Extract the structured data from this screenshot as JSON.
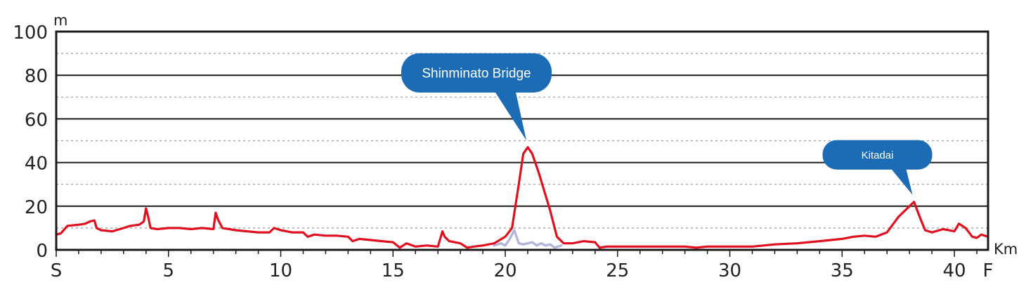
{
  "chart_data": {
    "type": "line",
    "y_unit": "m",
    "x_unit": "Km",
    "xlim": [
      0,
      41.5
    ],
    "ylim": [
      0,
      100
    ],
    "y_ticks": [
      {
        "value": 0,
        "label": "0"
      },
      {
        "value": 20,
        "label": "20"
      },
      {
        "value": 40,
        "label": "40"
      },
      {
        "value": 60,
        "label": "60"
      },
      {
        "value": 80,
        "label": "80"
      },
      {
        "value": 100,
        "label": "100"
      }
    ],
    "y_minor_gridlines": [
      10,
      30,
      50,
      70,
      90
    ],
    "x_ticks": [
      {
        "value": 0,
        "label": "S"
      },
      {
        "value": 5,
        "label": "5"
      },
      {
        "value": 10,
        "label": "10"
      },
      {
        "value": 15,
        "label": "15"
      },
      {
        "value": 20,
        "label": "20"
      },
      {
        "value": 25,
        "label": "25"
      },
      {
        "value": 30,
        "label": "30"
      },
      {
        "value": 35,
        "label": "35"
      },
      {
        "value": 40,
        "label": "40"
      },
      {
        "value": 41.5,
        "label": "F"
      }
    ],
    "grid": true,
    "series": [
      {
        "color": "#e0101f",
        "points": [
          [
            0,
            7
          ],
          [
            0.2,
            7.5
          ],
          [
            0.5,
            11
          ],
          [
            1,
            11.5
          ],
          [
            1.3,
            12
          ],
          [
            1.5,
            13
          ],
          [
            1.7,
            13.5
          ],
          [
            1.8,
            10
          ],
          [
            2,
            9
          ],
          [
            2.5,
            8.5
          ],
          [
            3,
            10
          ],
          [
            3.3,
            11
          ],
          [
            3.7,
            11.5
          ],
          [
            3.9,
            13
          ],
          [
            4,
            19
          ],
          [
            4.1,
            15
          ],
          [
            4.2,
            10
          ],
          [
            4.5,
            9.5
          ],
          [
            5,
            10
          ],
          [
            5.5,
            10
          ],
          [
            6,
            9.5
          ],
          [
            6.5,
            10
          ],
          [
            7,
            9.5
          ],
          [
            7.1,
            17
          ],
          [
            7.2,
            14
          ],
          [
            7.4,
            10
          ],
          [
            8,
            9
          ],
          [
            8.5,
            8.5
          ],
          [
            9,
            8
          ],
          [
            9.5,
            8
          ],
          [
            9.7,
            10
          ],
          [
            10,
            9
          ],
          [
            10.5,
            8
          ],
          [
            11,
            8
          ],
          [
            11.2,
            6
          ],
          [
            11.5,
            7
          ],
          [
            12,
            6.5
          ],
          [
            12.5,
            6.5
          ],
          [
            13,
            6
          ],
          [
            13.2,
            4
          ],
          [
            13.5,
            5
          ],
          [
            14,
            4.5
          ],
          [
            14.5,
            4
          ],
          [
            15,
            3.5
          ],
          [
            15.3,
            1
          ],
          [
            15.6,
            3
          ],
          [
            16,
            1.5
          ],
          [
            16.5,
            2
          ],
          [
            17,
            1.5
          ],
          [
            17.2,
            8.5
          ],
          [
            17.3,
            6
          ],
          [
            17.5,
            4
          ],
          [
            18,
            3
          ],
          [
            18.3,
            1
          ],
          [
            18.6,
            1.5
          ],
          [
            19,
            2
          ],
          [
            19.5,
            3
          ],
          [
            20,
            6
          ],
          [
            20.3,
            10
          ],
          [
            20.6,
            30
          ],
          [
            20.8,
            44
          ],
          [
            21,
            47
          ],
          [
            21.2,
            44
          ],
          [
            21.5,
            35
          ],
          [
            22,
            18
          ],
          [
            22.3,
            6
          ],
          [
            22.6,
            3
          ],
          [
            23,
            3
          ],
          [
            23.5,
            4
          ],
          [
            24,
            3.5
          ],
          [
            24.2,
            1
          ],
          [
            24.5,
            1.5
          ],
          [
            25,
            1.5
          ],
          [
            26,
            1.5
          ],
          [
            27,
            1.5
          ],
          [
            28,
            1.5
          ],
          [
            28.5,
            1
          ],
          [
            29,
            1.5
          ],
          [
            30,
            1.5
          ],
          [
            31,
            1.5
          ],
          [
            31.5,
            2
          ],
          [
            32,
            2.5
          ],
          [
            33,
            3
          ],
          [
            34,
            4
          ],
          [
            35,
            5
          ],
          [
            35.5,
            6
          ],
          [
            36,
            6.5
          ],
          [
            36.5,
            6
          ],
          [
            37,
            8
          ],
          [
            37.5,
            15
          ],
          [
            38,
            20
          ],
          [
            38.2,
            22
          ],
          [
            38.5,
            14
          ],
          [
            38.7,
            9
          ],
          [
            39,
            8
          ],
          [
            39.5,
            9.5
          ],
          [
            40,
            8.5
          ],
          [
            40.2,
            12
          ],
          [
            40.5,
            10
          ],
          [
            40.8,
            6
          ],
          [
            41,
            5.5
          ],
          [
            41.2,
            7
          ],
          [
            41.5,
            6
          ]
        ]
      },
      {
        "color": "#b4b6d8",
        "points": [
          [
            19.5,
            2
          ],
          [
            19.8,
            3
          ],
          [
            20,
            2
          ],
          [
            20.2,
            5
          ],
          [
            20.4,
            9
          ],
          [
            20.6,
            3
          ],
          [
            20.8,
            2.5
          ],
          [
            21,
            3
          ],
          [
            21.2,
            3.5
          ],
          [
            21.4,
            2
          ],
          [
            21.6,
            3
          ],
          [
            21.8,
            2
          ],
          [
            22,
            2.5
          ],
          [
            22.2,
            1
          ],
          [
            22.5,
            2
          ]
        ]
      }
    ],
    "annotations": [
      {
        "text": "Shinminato Bridge",
        "x": 21,
        "y": 47,
        "color": "#1b6bb5"
      },
      {
        "text": "Kitadai",
        "x": 38.2,
        "y": 22,
        "color": "#1b6bb5"
      }
    ]
  }
}
